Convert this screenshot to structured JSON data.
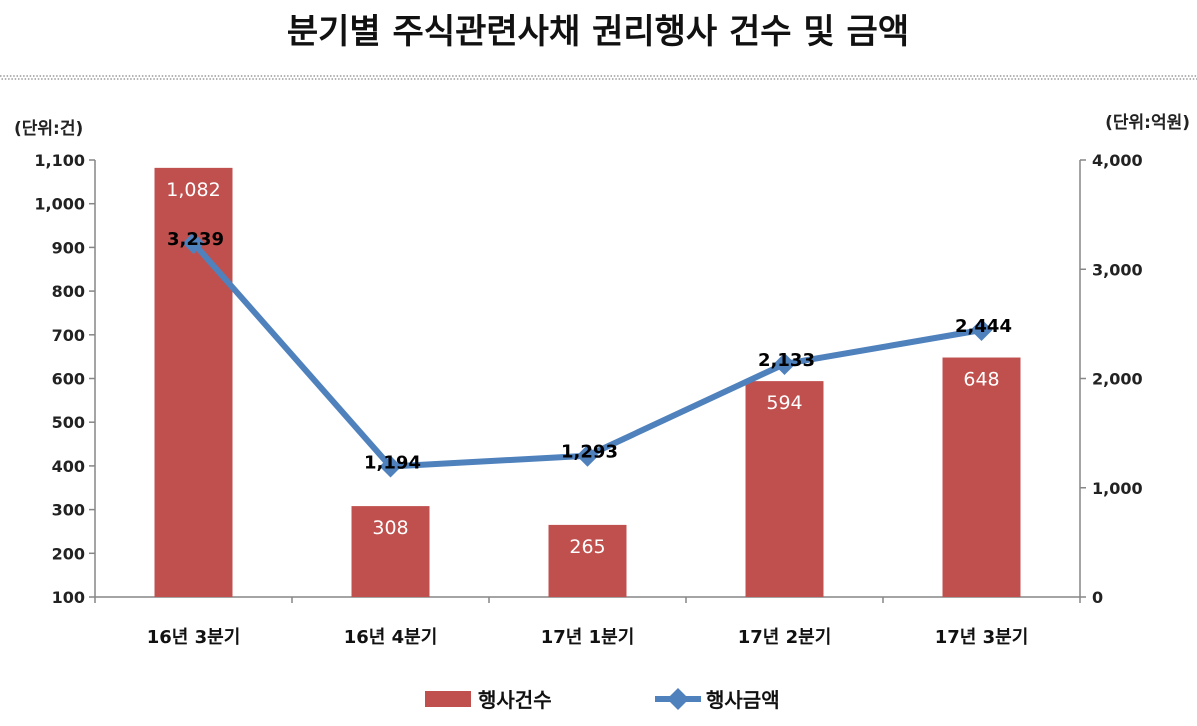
{
  "chart_data": {
    "type": "bar",
    "title": "분기별 주식관련사채 권리행사 건수 및 금액",
    "categories": [
      "16년 3분기",
      "16년 4분기",
      "17년 1분기",
      "17년 2분기",
      "17년 3분기"
    ],
    "series": [
      {
        "name": "행사건수",
        "type": "bar",
        "axis": "left",
        "color": "#C0504D",
        "values": [
          1082,
          308,
          265,
          594,
          648
        ]
      },
      {
        "name": "행사금액",
        "type": "line",
        "axis": "right",
        "color": "#4F81BD",
        "values": [
          3239,
          1194,
          1293,
          2133,
          2444
        ]
      }
    ],
    "xlabel": "",
    "y_axis": {
      "label": "(단위:건)",
      "range": [
        100,
        1100
      ],
      "ticks": [
        100,
        200,
        300,
        400,
        500,
        600,
        700,
        800,
        900,
        1000,
        1100
      ]
    },
    "y2_axis": {
      "label": "(단위:억원)",
      "range": [
        0,
        4000
      ],
      "ticks": [
        0,
        1000,
        2000,
        3000,
        4000
      ]
    },
    "data_labels": true,
    "grid": false,
    "legend": "bottom"
  }
}
